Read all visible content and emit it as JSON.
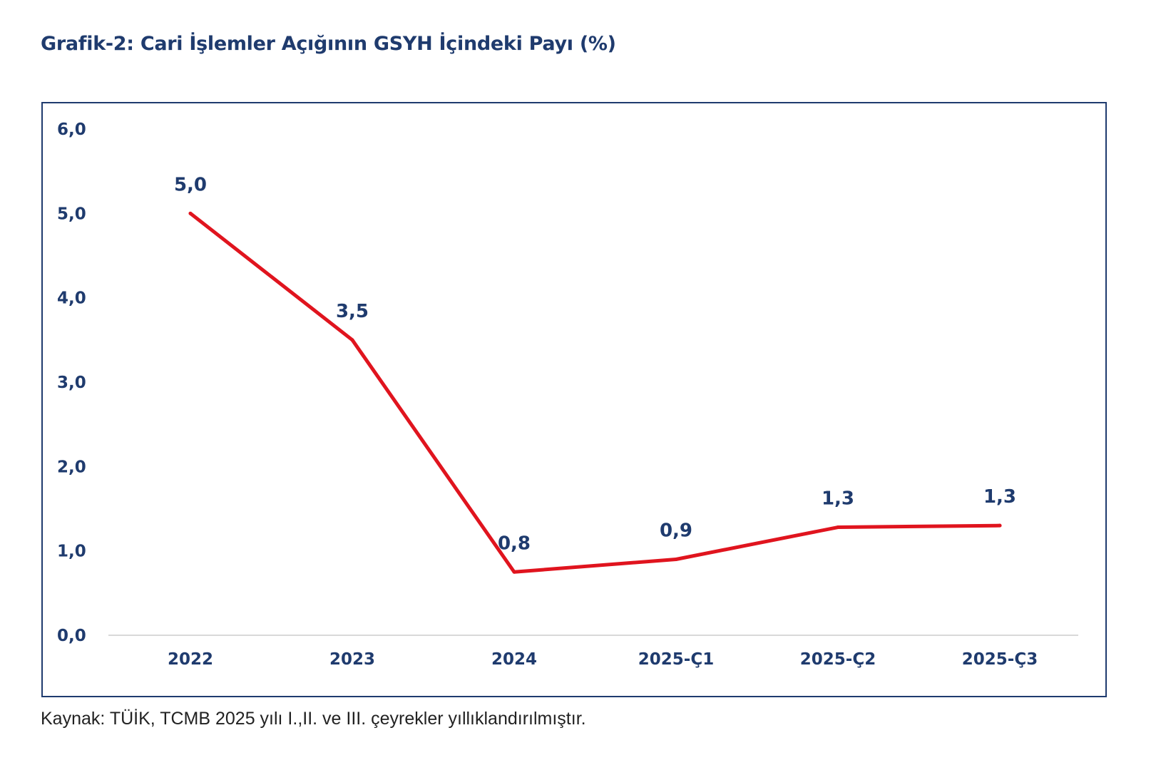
{
  "title": "Grafik-2: Cari İşlemler Açığının GSYH İçindeki Payı (%)",
  "source_note": "Kaynak: TÜİK, TCMB 2025 yılı I.,II. ve III. çeyrekler yıllıklandırılmıştır.",
  "colors": {
    "line": "#e0141e",
    "text": "#1f3b6e",
    "frame": "#1f3b6e",
    "baseline": "#d9d9d9"
  },
  "chart_data": {
    "type": "line",
    "categories": [
      "2022",
      "2023",
      "2024",
      "2025-Ç1",
      "2025-Ç2",
      "2025-Ç3"
    ],
    "series": [
      {
        "values": [
          5.0,
          3.5,
          0.75,
          0.9,
          1.28,
          1.3
        ],
        "labels": [
          "5,0",
          "3,5",
          "0,8",
          "0,9",
          "1,3",
          "1,3"
        ]
      }
    ],
    "ylim": [
      0,
      6
    ],
    "yticks": [
      "0,0",
      "1,0",
      "2,0",
      "3,0",
      "4,0",
      "5,0",
      "6,0"
    ],
    "grid": false,
    "legend": "none"
  }
}
